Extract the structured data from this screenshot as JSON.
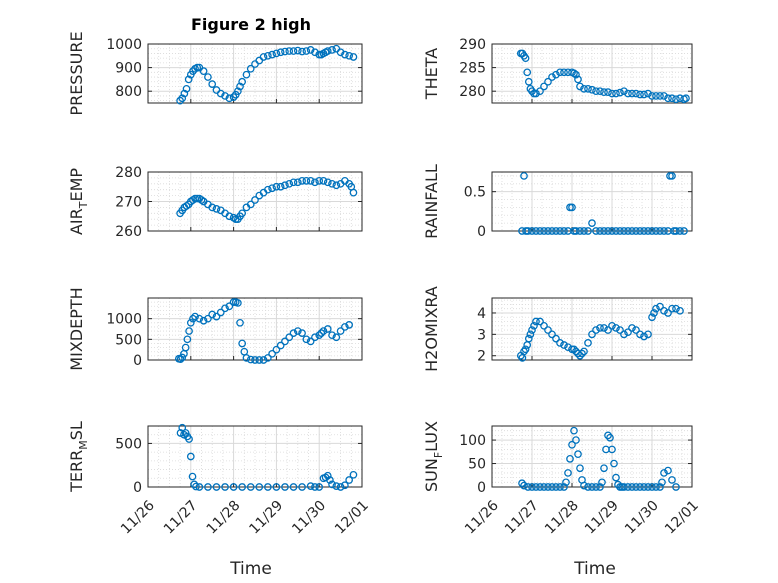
{
  "figure": {
    "title": "Figure 2 high",
    "x_tick_labels": [
      "11/26",
      "11/27",
      "11/28",
      "11/29",
      "11/30",
      "12/01"
    ],
    "xlabel": "Time",
    "marker_color": "#0072BD",
    "marker": "circle"
  },
  "chart_data": [
    {
      "type": "scatter",
      "ylabel": "PRESSURE",
      "xlim": [
        "11/26",
        "12/01"
      ],
      "ylim": [
        750,
        1000
      ],
      "yticks": [
        800,
        900,
        1000
      ],
      "grid": "on",
      "series": [
        {
          "x": [
            0.75,
            0.8,
            0.85,
            0.9,
            0.95,
            1.0,
            1.05,
            1.1,
            1.15,
            1.2,
            1.3,
            1.4,
            1.5,
            1.6,
            1.7,
            1.8,
            1.9,
            2.0,
            2.05,
            2.1,
            2.15,
            2.2,
            2.3,
            2.4,
            2.5,
            2.6,
            2.7,
            2.8,
            2.9,
            3.0,
            3.1,
            3.2,
            3.3,
            3.4,
            3.5,
            3.6,
            3.7,
            3.8,
            3.9,
            4.0,
            4.05,
            4.1,
            4.15,
            4.2,
            4.3,
            4.4,
            4.5,
            4.6,
            4.7,
            4.8
          ],
          "y": [
            760,
            770,
            790,
            810,
            850,
            870,
            885,
            895,
            900,
            900,
            885,
            860,
            830,
            805,
            790,
            780,
            770,
            775,
            785,
            800,
            820,
            840,
            870,
            895,
            915,
            930,
            945,
            950,
            955,
            960,
            965,
            968,
            970,
            970,
            972,
            968,
            970,
            975,
            965,
            955,
            955,
            960,
            965,
            970,
            975,
            980,
            965,
            955,
            950,
            945
          ]
        }
      ]
    },
    {
      "type": "scatter",
      "ylabel": "THETA",
      "xlim": [
        "11/26",
        "12/01"
      ],
      "ylim": [
        277.5,
        290
      ],
      "yticks": [
        280,
        285,
        290
      ],
      "grid": "on",
      "series": [
        {
          "x": [
            0.72,
            0.76,
            0.8,
            0.84,
            0.88,
            0.92,
            0.96,
            1.0,
            1.05,
            1.1,
            1.2,
            1.3,
            1.4,
            1.5,
            1.6,
            1.7,
            1.8,
            1.9,
            2.0,
            2.05,
            2.1,
            2.15,
            2.2,
            2.3,
            2.4,
            2.5,
            2.6,
            2.7,
            2.8,
            2.9,
            3.0,
            3.1,
            3.2,
            3.3,
            3.4,
            3.5,
            3.6,
            3.7,
            3.8,
            3.9,
            4.0,
            4.1,
            4.2,
            4.3,
            4.4,
            4.5,
            4.6,
            4.7,
            4.8,
            4.85
          ],
          "y": [
            288,
            288,
            287.5,
            287,
            284,
            282,
            280.5,
            280,
            279.5,
            279.5,
            280,
            281,
            282,
            283,
            283.5,
            284,
            284,
            284,
            284,
            283.8,
            283.5,
            282.5,
            281,
            280.5,
            280.5,
            280.3,
            280,
            280,
            279.8,
            279.8,
            279.5,
            279.5,
            279.7,
            280,
            279.5,
            279.5,
            279.5,
            279.3,
            279.3,
            279.5,
            279,
            279,
            279,
            279,
            278.5,
            278.5,
            278.3,
            278.5,
            278.3,
            278.5
          ]
        }
      ]
    },
    {
      "type": "scatter",
      "ylabel": "AIR",
      "ylabel_sub": "T",
      "ylabel_tail": "EMP",
      "xlim": [
        "11/26",
        "12/01"
      ],
      "ylim": [
        260,
        280
      ],
      "yticks": [
        260,
        270,
        280
      ],
      "grid": "on",
      "series": [
        {
          "x": [
            0.75,
            0.8,
            0.85,
            0.9,
            0.95,
            1.0,
            1.05,
            1.1,
            1.15,
            1.2,
            1.25,
            1.3,
            1.4,
            1.5,
            1.6,
            1.7,
            1.8,
            1.9,
            2.0,
            2.05,
            2.1,
            2.15,
            2.2,
            2.3,
            2.4,
            2.5,
            2.6,
            2.7,
            2.8,
            2.9,
            3.0,
            3.1,
            3.2,
            3.3,
            3.4,
            3.5,
            3.6,
            3.7,
            3.8,
            3.9,
            4.0,
            4.1,
            4.2,
            4.3,
            4.4,
            4.5,
            4.6,
            4.7,
            4.75,
            4.8
          ],
          "y": [
            266,
            267,
            268,
            268.5,
            269,
            270,
            270.5,
            271,
            271,
            271,
            270.5,
            270,
            269,
            268,
            267.5,
            267,
            266,
            265,
            264.5,
            264,
            264,
            265,
            266,
            268,
            269,
            270.5,
            272,
            273,
            274,
            274.5,
            275,
            275,
            275.5,
            276,
            276.5,
            276.5,
            277,
            277,
            277,
            276.5,
            277,
            277,
            276.5,
            276,
            275.5,
            276,
            277,
            276,
            275,
            273
          ]
        }
      ]
    },
    {
      "type": "scatter",
      "ylabel": "RAINFALL",
      "xlim": [
        "11/26",
        "12/01"
      ],
      "ylim": [
        0,
        0.75
      ],
      "yticks": [
        0,
        0.5
      ],
      "grid": "on",
      "series": [
        {
          "x": [
            0.75,
            0.8,
            0.85,
            0.9,
            1.0,
            1.1,
            1.2,
            1.3,
            1.4,
            1.5,
            1.6,
            1.7,
            1.8,
            1.9,
            1.95,
            2.0,
            2.05,
            2.1,
            2.2,
            2.3,
            2.4,
            2.5,
            2.6,
            2.7,
            2.8,
            2.9,
            3.0,
            3.1,
            3.2,
            3.3,
            3.4,
            3.5,
            3.6,
            3.7,
            3.8,
            3.9,
            4.0,
            4.1,
            4.2,
            4.3,
            4.4,
            4.45,
            4.5,
            4.55,
            4.6,
            4.7,
            4.8
          ],
          "y": [
            0,
            0.7,
            0,
            0,
            0,
            0,
            0,
            0,
            0,
            0,
            0,
            0,
            0,
            0,
            0.3,
            0.3,
            0,
            0,
            0,
            0,
            0,
            0.1,
            0,
            0,
            0,
            0,
            0,
            0,
            0,
            0,
            0,
            0,
            0,
            0,
            0,
            0,
            0,
            0,
            0,
            0,
            0,
            0.7,
            0.7,
            0,
            0,
            0,
            0
          ]
        }
      ]
    },
    {
      "type": "scatter",
      "ylabel": "MIXDEPTH",
      "xlim": [
        "11/26",
        "12/01"
      ],
      "ylim": [
        0,
        1500
      ],
      "yticks": [
        0,
        500,
        1000
      ],
      "grid": "on",
      "series": [
        {
          "x": [
            0.72,
            0.76,
            0.8,
            0.84,
            0.88,
            0.92,
            0.96,
            1.0,
            1.05,
            1.1,
            1.2,
            1.3,
            1.4,
            1.5,
            1.6,
            1.7,
            1.8,
            1.9,
            2.0,
            2.05,
            2.1,
            2.15,
            2.2,
            2.25,
            2.3,
            2.4,
            2.5,
            2.6,
            2.7,
            2.8,
            2.9,
            3.0,
            3.1,
            3.2,
            3.3,
            3.4,
            3.5,
            3.6,
            3.7,
            3.8,
            3.9,
            4.0,
            4.05,
            4.1,
            4.2,
            4.3,
            4.4,
            4.5,
            4.6,
            4.7
          ],
          "y": [
            30,
            20,
            60,
            150,
            300,
            500,
            700,
            900,
            1000,
            1050,
            1000,
            950,
            1000,
            1100,
            1050,
            1150,
            1250,
            1300,
            1400,
            1400,
            1380,
            900,
            400,
            200,
            50,
            10,
            0,
            0,
            0,
            50,
            150,
            250,
            350,
            450,
            550,
            650,
            700,
            650,
            500,
            450,
            550,
            600,
            650,
            700,
            750,
            600,
            550,
            700,
            800,
            850
          ]
        }
      ]
    },
    {
      "type": "scatter",
      "ylabel": "H2OMIXRA",
      "xlim": [
        "11/26",
        "12/01"
      ],
      "ylim": [
        1.8,
        4.7
      ],
      "yticks": [
        2,
        3,
        4
      ],
      "grid": "on",
      "series": [
        {
          "x": [
            0.72,
            0.76,
            0.8,
            0.84,
            0.88,
            0.92,
            0.96,
            1.0,
            1.05,
            1.1,
            1.2,
            1.3,
            1.4,
            1.5,
            1.6,
            1.7,
            1.8,
            1.9,
            2.0,
            2.05,
            2.1,
            2.15,
            2.2,
            2.25,
            2.3,
            2.4,
            2.5,
            2.6,
            2.7,
            2.8,
            2.9,
            3.0,
            3.1,
            3.2,
            3.3,
            3.4,
            3.5,
            3.6,
            3.7,
            3.8,
            3.9,
            4.0,
            4.05,
            4.1,
            4.2,
            4.3,
            4.4,
            4.5,
            4.6,
            4.7
          ],
          "y": [
            2.0,
            1.9,
            2.2,
            2.3,
            2.5,
            2.8,
            3.0,
            3.2,
            3.4,
            3.6,
            3.6,
            3.4,
            3.2,
            3.0,
            2.8,
            2.6,
            2.5,
            2.4,
            2.3,
            2.3,
            2.2,
            2.1,
            2.0,
            2.1,
            2.2,
            2.6,
            3.0,
            3.2,
            3.3,
            3.3,
            3.2,
            3.4,
            3.3,
            3.2,
            3.0,
            3.1,
            3.3,
            3.2,
            3.0,
            2.9,
            3.0,
            3.8,
            4.0,
            4.2,
            4.3,
            4.1,
            4.0,
            4.2,
            4.2,
            4.1
          ]
        }
      ]
    },
    {
      "type": "scatter",
      "ylabel": "TERR",
      "ylabel_sub": "M",
      "ylabel_tail": "SL",
      "xlim": [
        "11/26",
        "12/01"
      ],
      "ylim": [
        0,
        700
      ],
      "yticks": [
        0,
        500
      ],
      "grid": "on",
      "series": [
        {
          "x": [
            0.76,
            0.8,
            0.84,
            0.88,
            0.92,
            0.96,
            1.0,
            1.04,
            1.08,
            1.12,
            1.2,
            1.4,
            1.6,
            1.8,
            2.0,
            2.2,
            2.4,
            2.6,
            2.8,
            3.0,
            3.2,
            3.4,
            3.6,
            3.8,
            3.9,
            4.0,
            4.1,
            4.15,
            4.2,
            4.25,
            4.3,
            4.4,
            4.5,
            4.6,
            4.7,
            4.8
          ],
          "y": [
            620,
            680,
            600,
            620,
            580,
            550,
            350,
            120,
            30,
            5,
            0,
            0,
            0,
            0,
            0,
            0,
            0,
            0,
            0,
            0,
            0,
            0,
            0,
            10,
            0,
            0,
            100,
            110,
            130,
            80,
            30,
            10,
            0,
            20,
            80,
            140
          ]
        }
      ]
    },
    {
      "type": "scatter",
      "ylabel": "SUN",
      "ylabel_sub": "F",
      "ylabel_tail": "LUX",
      "xlim": [
        "11/26",
        "12/01"
      ],
      "ylim": [
        0,
        130
      ],
      "yticks": [
        0,
        50,
        100
      ],
      "grid": "on",
      "series": [
        {
          "x": [
            0.75,
            0.8,
            0.9,
            1.0,
            1.1,
            1.2,
            1.3,
            1.4,
            1.5,
            1.6,
            1.7,
            1.8,
            1.85,
            1.9,
            1.95,
            2.0,
            2.05,
            2.1,
            2.15,
            2.2,
            2.25,
            2.3,
            2.4,
            2.5,
            2.6,
            2.7,
            2.75,
            2.8,
            2.85,
            2.9,
            2.95,
            3.0,
            3.05,
            3.1,
            3.15,
            3.2,
            3.25,
            3.3,
            3.4,
            3.5,
            3.6,
            3.7,
            3.8,
            3.9,
            4.0,
            4.1,
            4.2,
            4.25,
            4.3,
            4.4,
            4.5,
            4.6
          ],
          "y": [
            8,
            3,
            0,
            0,
            0,
            0,
            0,
            0,
            0,
            0,
            0,
            0,
            10,
            30,
            60,
            90,
            120,
            100,
            70,
            40,
            15,
            3,
            0,
            0,
            0,
            0,
            10,
            40,
            80,
            110,
            105,
            80,
            50,
            20,
            5,
            0,
            0,
            0,
            0,
            0,
            0,
            0,
            0,
            0,
            0,
            0,
            0,
            10,
            30,
            35,
            15,
            0
          ]
        }
      ]
    }
  ]
}
